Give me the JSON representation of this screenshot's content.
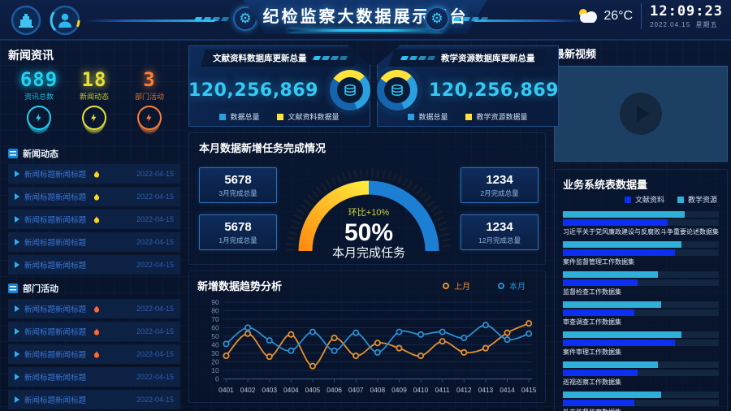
{
  "header": {
    "title": "纪检监察大数据展示平台",
    "weather_temp": "26°C",
    "time": "12:09:23",
    "date": "2022.04.15",
    "weekday": "星期五"
  },
  "news": {
    "title": "新闻资讯",
    "stats": [
      {
        "value": "689",
        "label": "资讯总数",
        "color": "#1fd2f2"
      },
      {
        "value": "18",
        "label": "新闻动态",
        "color": "#e6e13a"
      },
      {
        "value": "3",
        "label": "部门活动",
        "color": "#ff7e33"
      }
    ],
    "sections": [
      {
        "title": "新闻动态",
        "flame_color": "#ffd21e",
        "items": [
          {
            "title": "新闻标题新闻标题",
            "hot": true,
            "date": "2022-04-15"
          },
          {
            "title": "新闻标题新闻标题",
            "hot": true,
            "date": "2022-04-15"
          },
          {
            "title": "新闻标题新闻标题",
            "hot": true,
            "date": "2022-04-15"
          },
          {
            "title": "新闻标题新闻标题",
            "hot": false,
            "date": "2022-04-15"
          },
          {
            "title": "新闻标题新闻标题",
            "hot": false,
            "date": "2022-04-15"
          }
        ]
      },
      {
        "title": "部门活动",
        "flame_color": "#ff6a2a",
        "items": [
          {
            "title": "新闻标题新闻标题",
            "hot": true,
            "date": "2022-04-15"
          },
          {
            "title": "新闻标题新闻标题",
            "hot": true,
            "date": "2022-04-15"
          },
          {
            "title": "新闻标题新闻标题",
            "hot": true,
            "date": "2022-04-15"
          },
          {
            "title": "新闻标题新闻标题",
            "hot": false,
            "date": "2022-04-15"
          },
          {
            "title": "新闻标题新闻标题",
            "hot": false,
            "date": "2022-04-15"
          }
        ]
      }
    ]
  },
  "db_cards": [
    {
      "title": "文献资料数据库更新总量",
      "value": "120,256,869",
      "layout": "number-first",
      "legend": [
        {
          "label": "数据总量",
          "color": "#2aa0e0"
        },
        {
          "label": "文献资料数据量",
          "color": "#ffe23c"
        }
      ]
    },
    {
      "title": "教学资源数据库更新总量",
      "value": "120,256,869",
      "layout": "donut-first",
      "legend": [
        {
          "label": "数据总量",
          "color": "#2aa0e0"
        },
        {
          "label": "教学资源数据量",
          "color": "#ffe23c"
        }
      ]
    }
  ],
  "tasks": {
    "title": "本月数据新增任务完成情况",
    "left_boxes": [
      {
        "value": "5678",
        "label": "3月完成总量"
      },
      {
        "value": "5678",
        "label": "1月完成总量"
      }
    ],
    "right_boxes": [
      {
        "value": "1234",
        "label": "2月完成总量"
      },
      {
        "value": "1234",
        "label": "12月完成总量"
      }
    ],
    "gauge": {
      "delta": "环比+10%",
      "percent": "50%",
      "label": "本月完成任务",
      "value": 50
    }
  },
  "video": {
    "title": "最新视频"
  },
  "trend": {
    "title": "新增数据趋势分析"
  },
  "biz": {
    "title": "业务系统表数据量",
    "legend": [
      {
        "label": "文献资料",
        "color": "#0d2ff2"
      },
      {
        "label": "教学资源",
        "color": "#2fb0d8"
      }
    ]
  },
  "chart_data": [
    {
      "type": "line",
      "title": "新增数据趋势分析",
      "x": [
        "0401",
        "0402",
        "0403",
        "0404",
        "0405",
        "0406",
        "0407",
        "0408",
        "0409",
        "0410",
        "0411",
        "0412",
        "0413",
        "0414",
        "0415"
      ],
      "series": [
        {
          "name": "上月",
          "color": "#e8912d",
          "values": [
            27,
            53,
            26,
            52,
            15,
            48,
            27,
            42,
            36,
            27,
            44,
            31,
            36,
            54,
            65
          ]
        },
        {
          "name": "本月",
          "color": "#2d8fd0",
          "values": [
            41,
            60,
            45,
            33,
            55,
            33,
            54,
            31,
            55,
            52,
            55,
            48,
            63,
            46,
            53
          ]
        }
      ],
      "ylim": [
        0,
        90
      ],
      "yticks": [
        0,
        10,
        20,
        30,
        40,
        50,
        60,
        70,
        80,
        90
      ],
      "grid": true,
      "legend_position": "top-right"
    },
    {
      "type": "bar",
      "title": "业务系统表数据量",
      "orientation": "horizontal",
      "categories": [
        "习近平关于党风廉政建设与反腐败斗争重要论述数据集",
        "案件监督管理工作数据集",
        "监督检查工作数据集",
        "审查调查工作数据集",
        "案件审理工作数据集",
        "巡视巡察工作数据集",
        "外方监督监察数据集"
      ],
      "series": [
        {
          "name": "教学资源",
          "color": "#2fb0d8",
          "values": [
            78,
            76,
            61,
            63,
            76,
            61,
            63
          ]
        },
        {
          "name": "文献资料",
          "color": "#0d2ff2",
          "values": [
            67,
            72,
            48,
            46,
            72,
            48,
            46
          ]
        }
      ],
      "xlim": [
        0,
        100
      ]
    },
    {
      "type": "pie",
      "title": "文献资料数据库更新总量",
      "labels": [
        "数据总量",
        "文献资料数据量"
      ],
      "values": [
        72,
        28
      ],
      "colors": [
        "#2aa0e0",
        "#ffe23c"
      ],
      "total": "120,256,869"
    },
    {
      "type": "pie",
      "title": "教学资源数据库更新总量",
      "labels": [
        "数据总量",
        "教学资源数据量"
      ],
      "values": [
        72,
        28
      ],
      "colors": [
        "#2aa0e0",
        "#ffe23c"
      ],
      "total": "120,256,869"
    },
    {
      "type": "gauge",
      "title": "本月数据新增任务完成情况",
      "value": 50,
      "max": 100,
      "label": "本月完成任务",
      "delta": "环比+10%"
    }
  ]
}
